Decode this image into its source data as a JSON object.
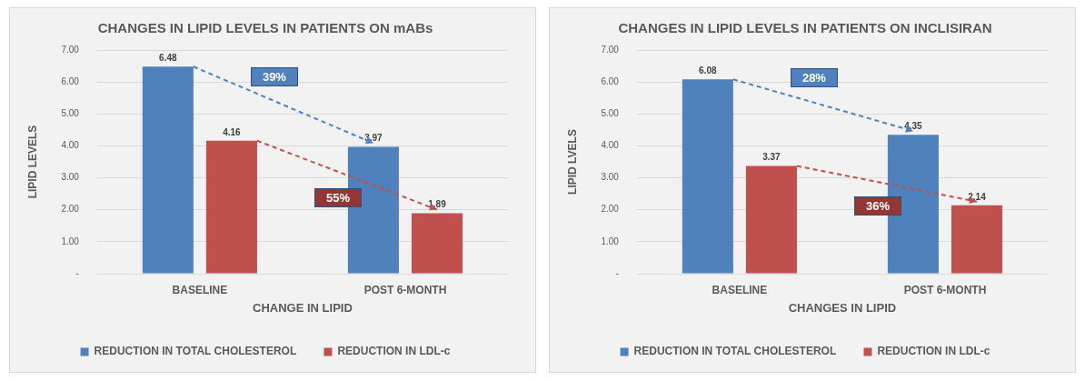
{
  "chart_data": [
    {
      "type": "bar",
      "title": "CHANGES IN LIPID LEVELS IN PATIENTS ON mABs",
      "xlabel": "CHANGE IN LIPID",
      "ylabel": "LIPID LEVELS",
      "categories": [
        "BASELINE",
        "POST 6-MONTH"
      ],
      "series": [
        {
          "name": "REDUCTION IN TOTAL CHOLESTEROL",
          "color": "#4f81bd",
          "values": [
            6.48,
            3.97
          ]
        },
        {
          "name": "REDUCTION IN LDL-c",
          "color": "#c0504d",
          "values": [
            4.16,
            1.89
          ]
        }
      ],
      "ylim": [
        0,
        7
      ],
      "yticks": [
        {
          "value": 0,
          "label": "-"
        },
        {
          "value": 1,
          "label": "1.00"
        },
        {
          "value": 2,
          "label": "2.00"
        },
        {
          "value": 3,
          "label": "3.00"
        },
        {
          "value": 4,
          "label": "4.00"
        },
        {
          "value": 5,
          "label": "5.00"
        },
        {
          "value": 6,
          "label": "6.00"
        },
        {
          "value": 7,
          "label": "7.00"
        }
      ],
      "grid": "y",
      "legend": "bottom",
      "data_labels": true,
      "annotations": [
        "39%",
        "55%"
      ]
    },
    {
      "type": "bar",
      "title": "CHANGES IN LIPID LEVELS IN PATIENTS ON INCLISIRAN",
      "xlabel": "CHANGES IN LIPID",
      "ylabel": "LIPID LVELS",
      "categories": [
        "BASELINE",
        "POST 6-MONTH"
      ],
      "series": [
        {
          "name": "REDUCTION IN TOTAL CHOLESTEROL",
          "color": "#4f81bd",
          "values": [
            6.08,
            4.35
          ]
        },
        {
          "name": "REDUCTION IN LDL-c",
          "color": "#c0504d",
          "values": [
            3.37,
            2.14
          ]
        }
      ],
      "ylim": [
        0,
        7
      ],
      "yticks": [
        {
          "value": 0,
          "label": "-"
        },
        {
          "value": 1,
          "label": "1.00"
        },
        {
          "value": 2,
          "label": "2.00"
        },
        {
          "value": 3,
          "label": "3.00"
        },
        {
          "value": 4,
          "label": "4.00"
        },
        {
          "value": 5,
          "label": "5.00"
        },
        {
          "value": 6,
          "label": "6.00"
        },
        {
          "value": 7,
          "label": "7.00"
        }
      ],
      "grid": "y",
      "legend": "bottom",
      "data_labels": true,
      "annotations": [
        "28%",
        "36%"
      ]
    }
  ]
}
